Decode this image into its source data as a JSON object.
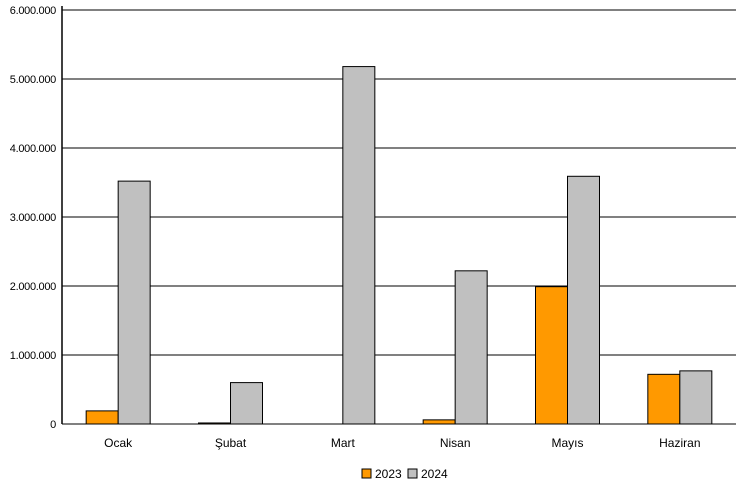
{
  "chart_data": {
    "type": "bar",
    "title": "",
    "xlabel": "",
    "ylabel": "",
    "categories": [
      "Ocak",
      "Şubat",
      "Mart",
      "Nisan",
      "Mayıs",
      "Haziran"
    ],
    "series": [
      {
        "name": "2023",
        "color": "#ff9900",
        "values": [
          190000,
          15000,
          0,
          60000,
          1990000,
          720000
        ]
      },
      {
        "name": "2024",
        "color": "#c0c0c0",
        "values": [
          3520000,
          600000,
          5180000,
          2220000,
          3590000,
          770000
        ]
      }
    ],
    "ylim": [
      0,
      6000000
    ],
    "yticks": [
      0,
      1000000,
      2000000,
      3000000,
      4000000,
      5000000,
      6000000
    ],
    "ytick_labels": [
      "0",
      "1.000.000",
      "2.000.000",
      "3.000.000",
      "4.000.000",
      "5.000.000",
      "6.000.000"
    ],
    "grid": true,
    "legend_position": "bottom-center"
  }
}
